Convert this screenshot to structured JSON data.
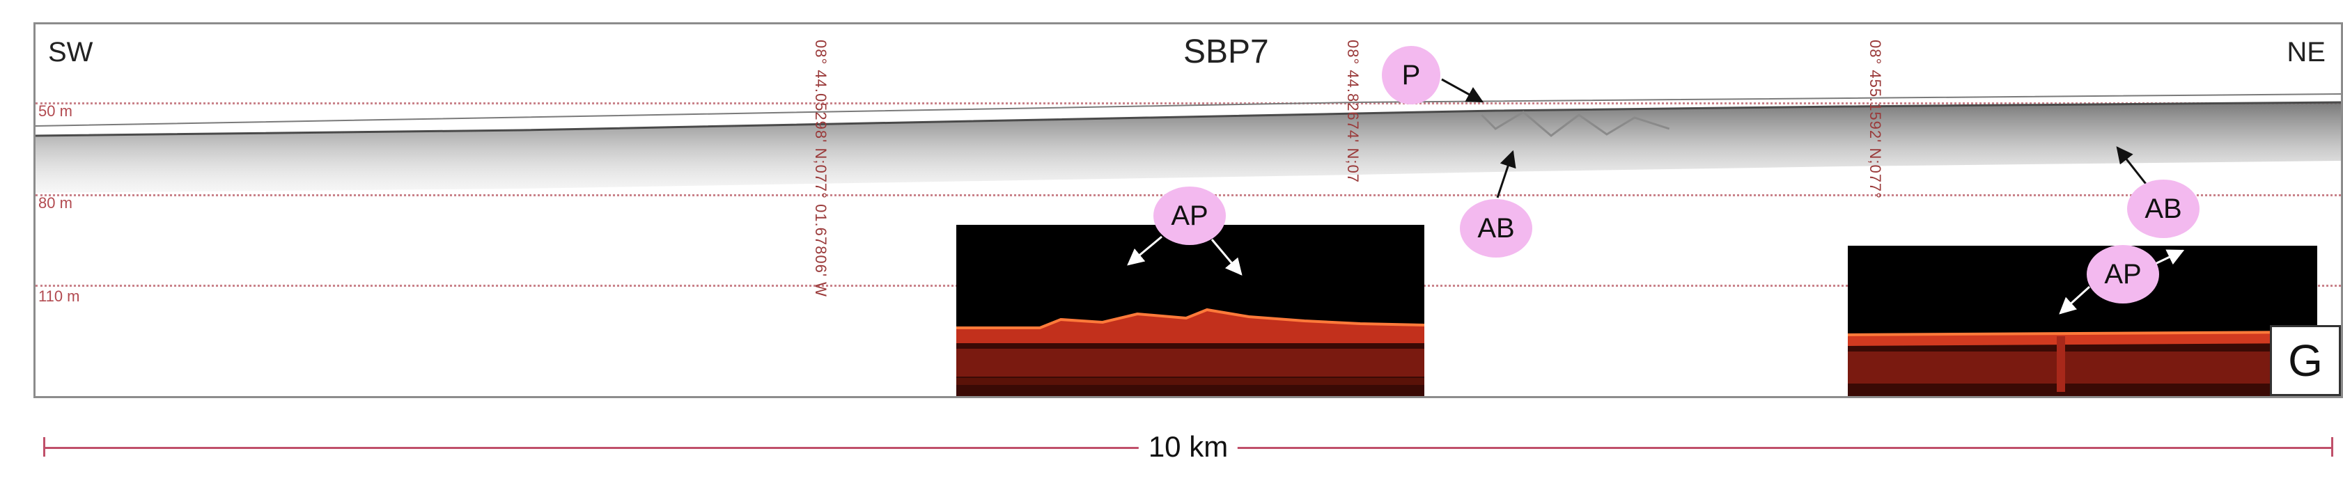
{
  "profile": {
    "title": "SBP7",
    "left_direction": "SW",
    "right_direction": "NE",
    "depth_labels": [
      "50 m",
      "80 m",
      "110 m"
    ],
    "coordinates": [
      "08° 44.05298' N;077° 01.67806' W",
      "08° 44.82674' N;07",
      "08° 455.1592' N;077°"
    ]
  },
  "annotations": {
    "p": "P",
    "ab_center": "AB",
    "ab_right": "AB",
    "ap_inset1": "AP",
    "ap_inset2": "AP"
  },
  "panel_letter": "G",
  "scale_bar": {
    "label": "10 km"
  },
  "colors": {
    "depth_line": "#c9828a",
    "coordinate_text": "#9a3a3a",
    "bubble": "#f3b9ef",
    "scale_bar": "#c0506a",
    "inset_reflector": "#e8442a"
  }
}
